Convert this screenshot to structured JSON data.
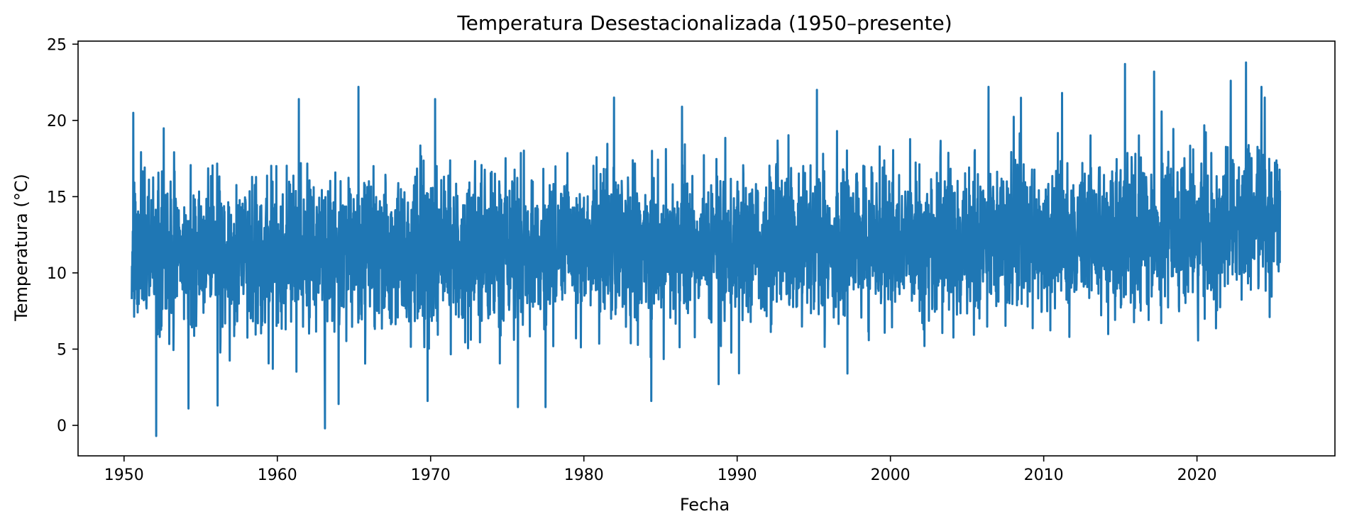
{
  "chart_data": {
    "type": "line",
    "title": "Temperatura Desestacionalizada (1950–presente)",
    "xlabel": "Fecha",
    "ylabel": "Temperatura (°C)",
    "x_start": "1950-07",
    "x_end": "2025-06",
    "xlim": [
      1947,
      2029
    ],
    "ylim": [
      -2,
      25.2
    ],
    "x_ticks": [
      1950,
      1960,
      1970,
      1980,
      1990,
      2000,
      2010,
      2020
    ],
    "x_tick_labels": [
      "1950",
      "1960",
      "1970",
      "1980",
      "1990",
      "2000",
      "2010",
      "2020"
    ],
    "y_ticks": [
      0,
      5,
      10,
      15,
      20,
      25
    ],
    "y_tick_labels": [
      "0",
      "5",
      "10",
      "15",
      "20",
      "25"
    ],
    "grid": false,
    "legend": "none",
    "line_color": "#1f77b4",
    "series_summary": {
      "approx_mean": 11.8,
      "approx_typical_low": 6,
      "approx_typical_high": 18
    },
    "notable_points": [
      {
        "x": 1950.6,
        "y": 20.5
      },
      {
        "x": 1952.1,
        "y": -0.7
      },
      {
        "x": 1954.2,
        "y": 1.1
      },
      {
        "x": 1956.1,
        "y": 1.3
      },
      {
        "x": 1961.4,
        "y": 21.4
      },
      {
        "x": 1963.1,
        "y": -0.2
      },
      {
        "x": 1964.0,
        "y": 1.4
      },
      {
        "x": 1965.3,
        "y": 22.2
      },
      {
        "x": 1969.8,
        "y": 1.6
      },
      {
        "x": 1970.3,
        "y": 21.4
      },
      {
        "x": 1975.7,
        "y": 1.2
      },
      {
        "x": 1977.5,
        "y": 1.2
      },
      {
        "x": 1984.4,
        "y": 1.6
      },
      {
        "x": 1986.4,
        "y": 20.9
      },
      {
        "x": 1988.8,
        "y": 2.7
      },
      {
        "x": 1995.2,
        "y": 22.0
      },
      {
        "x": 1997.2,
        "y": 3.4
      },
      {
        "x": 2006.4,
        "y": 22.2
      },
      {
        "x": 2011.2,
        "y": 21.8
      },
      {
        "x": 2015.3,
        "y": 23.7
      },
      {
        "x": 2017.2,
        "y": 23.2
      },
      {
        "x": 2022.2,
        "y": 22.6
      },
      {
        "x": 2023.2,
        "y": 23.8
      },
      {
        "x": 2024.2,
        "y": 22.2
      }
    ]
  }
}
